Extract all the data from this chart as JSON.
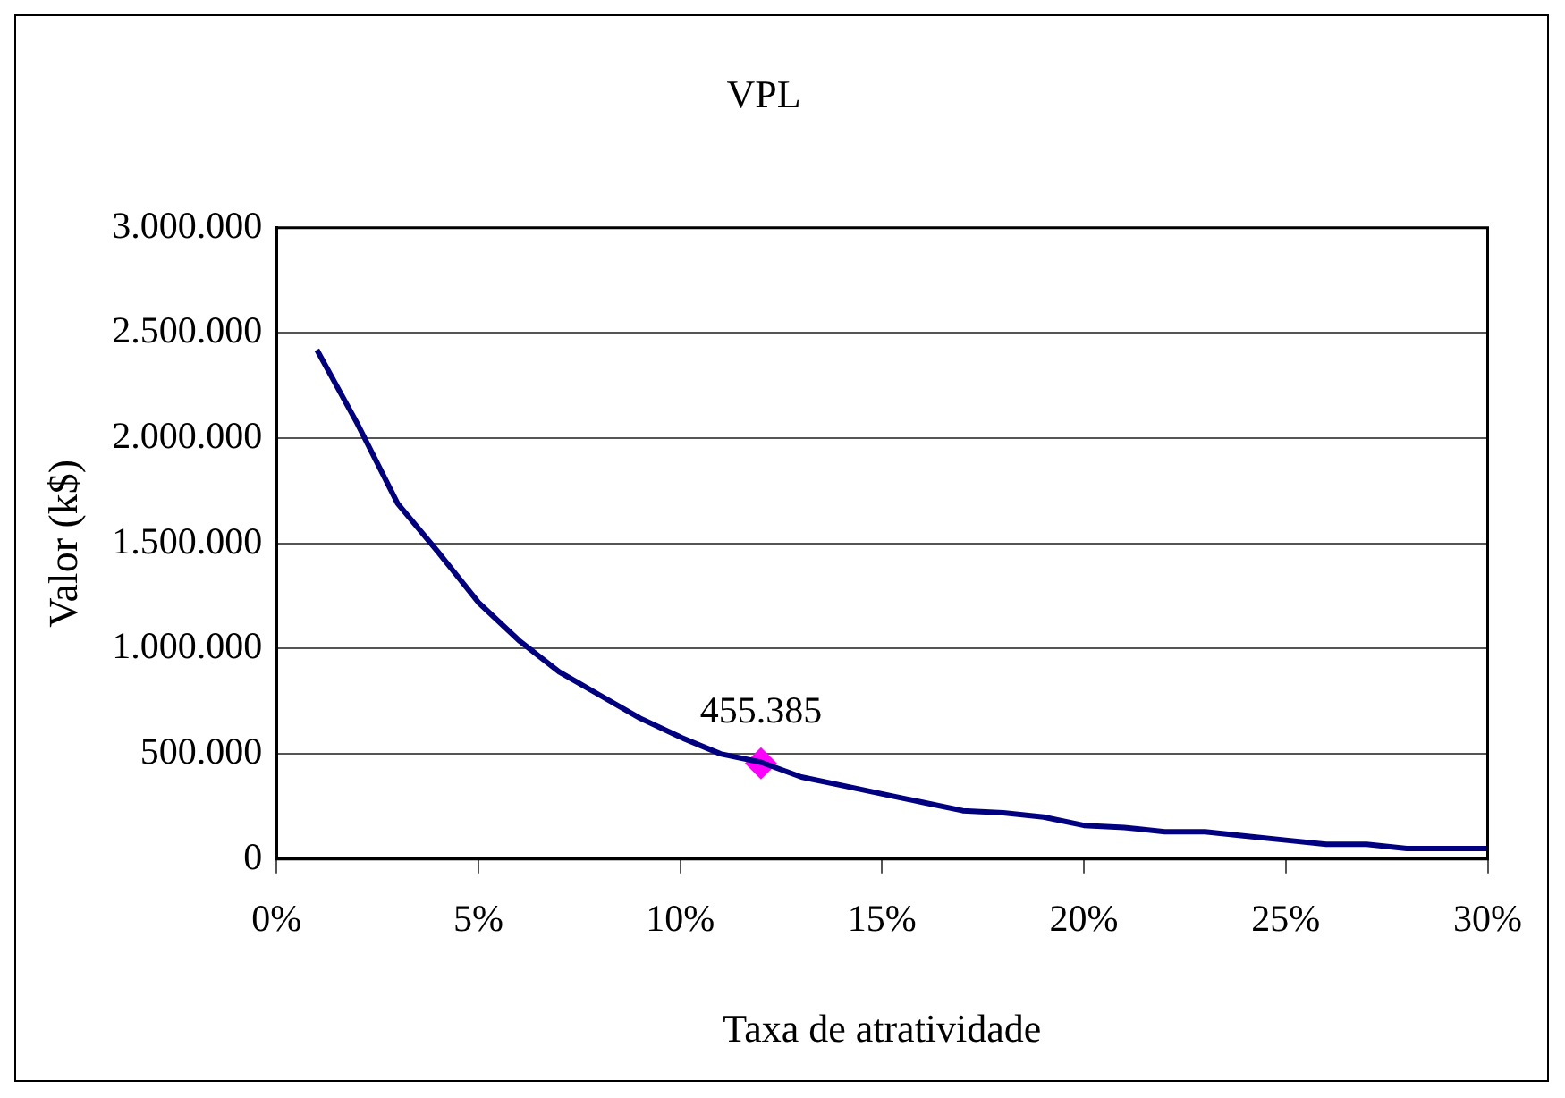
{
  "chart_data": {
    "type": "line",
    "title": "VPL",
    "xlabel": "Taxa de atratividade",
    "ylabel": "Valor (k$)",
    "xlim": [
      0,
      30
    ],
    "xticks": [
      {
        "value": 0,
        "label": "0%"
      },
      {
        "value": 5,
        "label": "5%"
      },
      {
        "value": 10,
        "label": "10%"
      },
      {
        "value": 15,
        "label": "15%"
      },
      {
        "value": 20,
        "label": "20%"
      },
      {
        "value": 25,
        "label": "25%"
      },
      {
        "value": 30,
        "label": "30%"
      }
    ],
    "ylim": [
      0,
      3000000
    ],
    "yticks": [
      {
        "value": 0,
        "label": "0"
      },
      {
        "value": 500000,
        "label": "500.000"
      },
      {
        "value": 1000000,
        "label": "1.000.000"
      },
      {
        "value": 1500000,
        "label": "1.500.000"
      },
      {
        "value": 2000000,
        "label": "2.000.000"
      },
      {
        "value": 2500000,
        "label": "2.500.000"
      },
      {
        "value": 3000000,
        "label": "3.000.000"
      }
    ],
    "grid": "y",
    "legend": false,
    "series": [
      {
        "color": "#000080",
        "marker": "none",
        "x": [
          1,
          2,
          3,
          4,
          5,
          6,
          7,
          8,
          9,
          10,
          11,
          12,
          13,
          14,
          15,
          16,
          17,
          18,
          19,
          20,
          21,
          22,
          23,
          24,
          25,
          26,
          27,
          28,
          29,
          30
        ],
        "values": [
          2420000,
          2070000,
          1690000,
          1460000,
          1220000,
          1040000,
          890000,
          780000,
          670000,
          580000,
          500000,
          460000,
          390000,
          350000,
          310000,
          270000,
          230000,
          220000,
          200000,
          160000,
          150000,
          130000,
          130000,
          110000,
          90000,
          70000,
          70000,
          50000,
          50000,
          50000
        ]
      },
      {
        "type": "scatter",
        "color": "#ff00ff",
        "marker": "diamond",
        "x": [
          12
        ],
        "values": [
          455385
        ],
        "value_labels": [
          "455.385"
        ]
      }
    ]
  }
}
